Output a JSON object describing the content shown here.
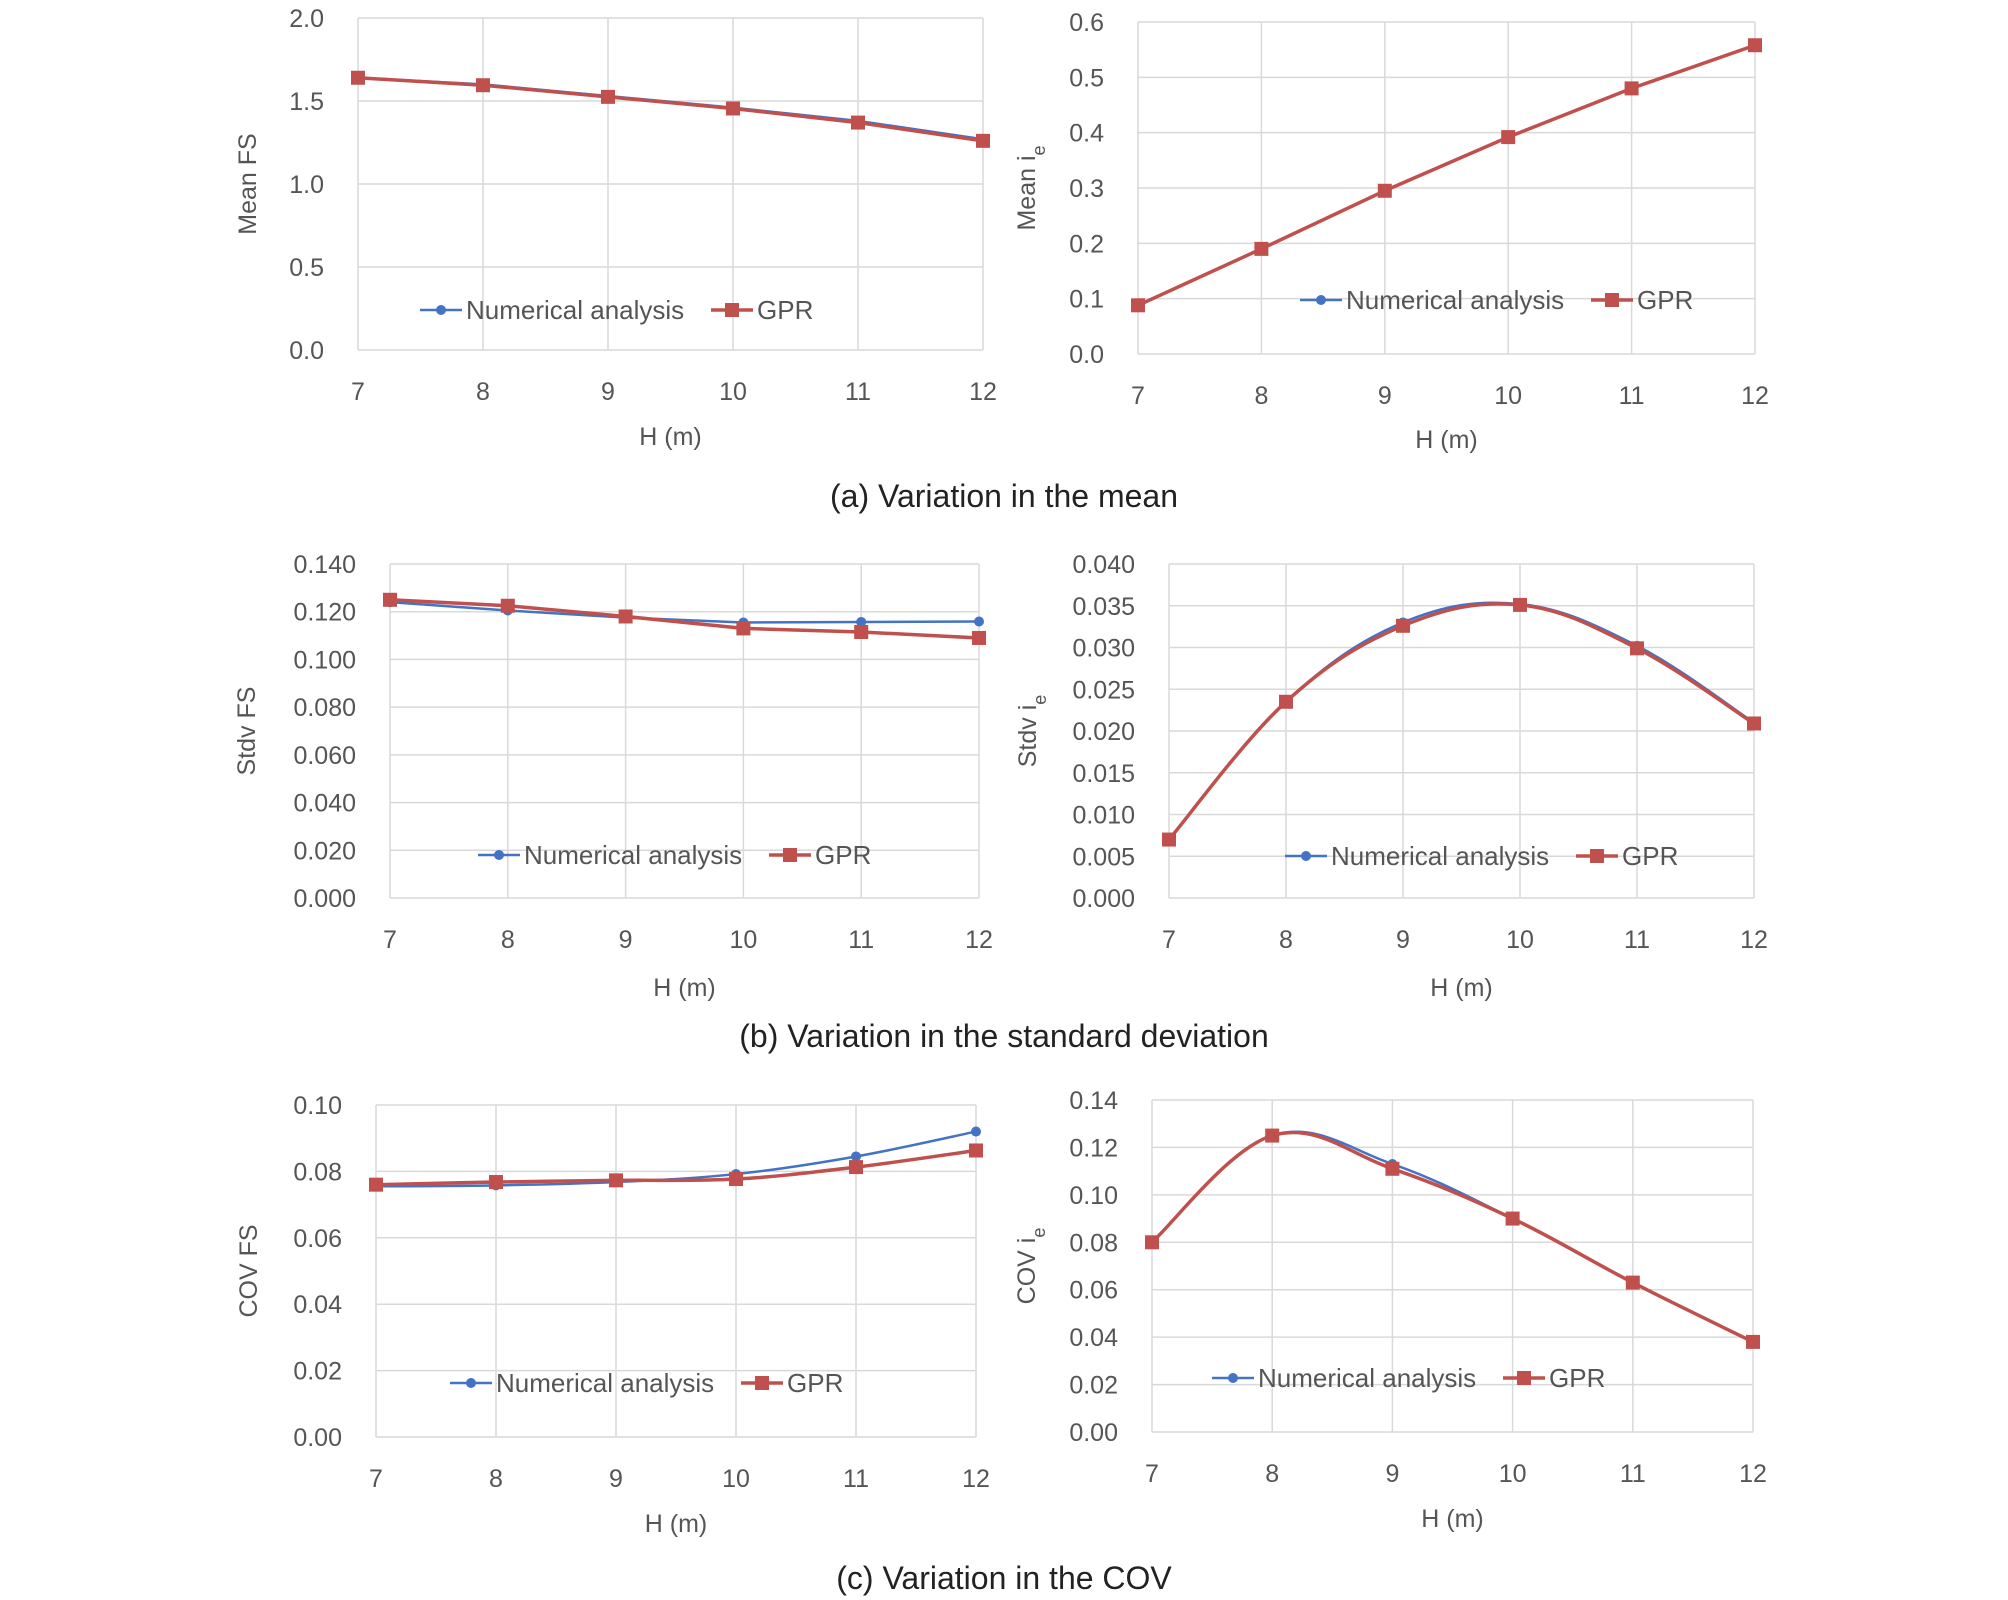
{
  "colors": {
    "numerical": "#4472C4",
    "gpr": "#C0504D",
    "grid": "#D9D9D9",
    "text": "#595959"
  },
  "captions": {
    "a": "(a) Variation in the mean",
    "b": "(b) Variation in the standard deviation",
    "c": "(c) Variation in the COV"
  },
  "chart_data": [
    {
      "id": "mean-fs",
      "type": "line",
      "smooth": false,
      "x": [
        7,
        8,
        9,
        10,
        11,
        12
      ],
      "xlabel": "H (m)",
      "ylabel": "Mean FS",
      "ylim": [
        0,
        2.0
      ],
      "yticks": [
        "0.0",
        "0.5",
        "1.0",
        "1.5",
        "2.0"
      ],
      "legend_position": "bottom-center",
      "series": [
        {
          "name": "Numerical analysis",
          "marker": "circle",
          "values": [
            1.64,
            1.6,
            1.53,
            1.46,
            1.38,
            1.27
          ]
        },
        {
          "name": "GPR",
          "marker": "square",
          "values": [
            1.64,
            1.595,
            1.525,
            1.455,
            1.37,
            1.26
          ]
        }
      ]
    },
    {
      "id": "mean-ie",
      "type": "line",
      "smooth": false,
      "x": [
        7,
        8,
        9,
        10,
        11,
        12
      ],
      "xlabel": "H (m)",
      "ylabel": "Mean i",
      "ylabel_sub": "e",
      "ylim": [
        0,
        0.6
      ],
      "yticks": [
        "0.0",
        "0.1",
        "0.2",
        "0.3",
        "0.4",
        "0.5",
        "0.6"
      ],
      "legend_position": "bottom-right",
      "series": [
        {
          "name": "Numerical analysis",
          "marker": "circle",
          "values": [
            0.088,
            0.19,
            0.295,
            0.392,
            0.48,
            0.558
          ]
        },
        {
          "name": "GPR",
          "marker": "square",
          "values": [
            0.088,
            0.19,
            0.295,
            0.392,
            0.48,
            0.558
          ]
        }
      ]
    },
    {
      "id": "stdv-fs",
      "type": "line",
      "smooth": false,
      "x": [
        7,
        8,
        9,
        10,
        11,
        12
      ],
      "xlabel": "H (m)",
      "ylabel": "Stdv FS",
      "ylim": [
        0,
        0.14
      ],
      "yticks": [
        "0.000",
        "0.020",
        "0.040",
        "0.060",
        "0.080",
        "0.100",
        "0.120",
        "0.140"
      ],
      "legend_position": "bottom-center",
      "series": [
        {
          "name": "Numerical analysis",
          "marker": "circle",
          "values": [
            0.124,
            0.1205,
            0.1175,
            0.1155,
            0.1157,
            0.1159
          ]
        },
        {
          "name": "GPR",
          "marker": "square",
          "values": [
            0.125,
            0.1225,
            0.118,
            0.113,
            0.1115,
            0.109
          ]
        }
      ]
    },
    {
      "id": "stdv-ie",
      "type": "line",
      "smooth": true,
      "x": [
        7,
        8,
        9,
        10,
        11,
        12
      ],
      "xlabel": "H (m)",
      "ylabel": "Stdv i",
      "ylabel_sub": "e",
      "ylim": [
        0,
        0.04
      ],
      "yticks": [
        "0.000",
        "0.005",
        "0.010",
        "0.015",
        "0.020",
        "0.025",
        "0.030",
        "0.035",
        "0.040"
      ],
      "legend_position": "bottom-center",
      "series": [
        {
          "name": "Numerical analysis",
          "marker": "circle",
          "values": [
            0.007,
            0.0235,
            0.033,
            0.0352,
            0.0302,
            0.021
          ]
        },
        {
          "name": "GPR",
          "marker": "square",
          "values": [
            0.007,
            0.0235,
            0.0326,
            0.0351,
            0.0299,
            0.0209
          ]
        }
      ]
    },
    {
      "id": "cov-fs",
      "type": "line",
      "smooth": true,
      "x": [
        7,
        8,
        9,
        10,
        11,
        12
      ],
      "xlabel": "H (m)",
      "ylabel": "COV FS",
      "ylim": [
        0,
        0.1
      ],
      "yticks": [
        "0.00",
        "0.02",
        "0.04",
        "0.06",
        "0.08",
        "0.10"
      ],
      "legend_position": "bottom-center",
      "series": [
        {
          "name": "Numerical analysis",
          "marker": "circle",
          "values": [
            0.0755,
            0.0758,
            0.0768,
            0.0792,
            0.0845,
            0.092
          ]
        },
        {
          "name": "GPR",
          "marker": "square",
          "values": [
            0.076,
            0.0768,
            0.0773,
            0.0777,
            0.0813,
            0.0863
          ]
        }
      ]
    },
    {
      "id": "cov-ie",
      "type": "line",
      "smooth": true,
      "x": [
        7,
        8,
        9,
        10,
        11,
        12
      ],
      "xlabel": "H (m)",
      "ylabel": "COV i",
      "ylabel_sub": "e",
      "ylim": [
        0,
        0.14
      ],
      "yticks": [
        "0.00",
        "0.02",
        "0.04",
        "0.06",
        "0.08",
        "0.10",
        "0.12",
        "0.14"
      ],
      "legend_position": "bottom-center",
      "series": [
        {
          "name": "Numerical analysis",
          "marker": "circle",
          "values": [
            0.08,
            0.125,
            0.113,
            0.09,
            0.063,
            0.038
          ]
        },
        {
          "name": "GPR",
          "marker": "square",
          "values": [
            0.08,
            0.125,
            0.111,
            0.09,
            0.063,
            0.038
          ]
        }
      ]
    }
  ]
}
